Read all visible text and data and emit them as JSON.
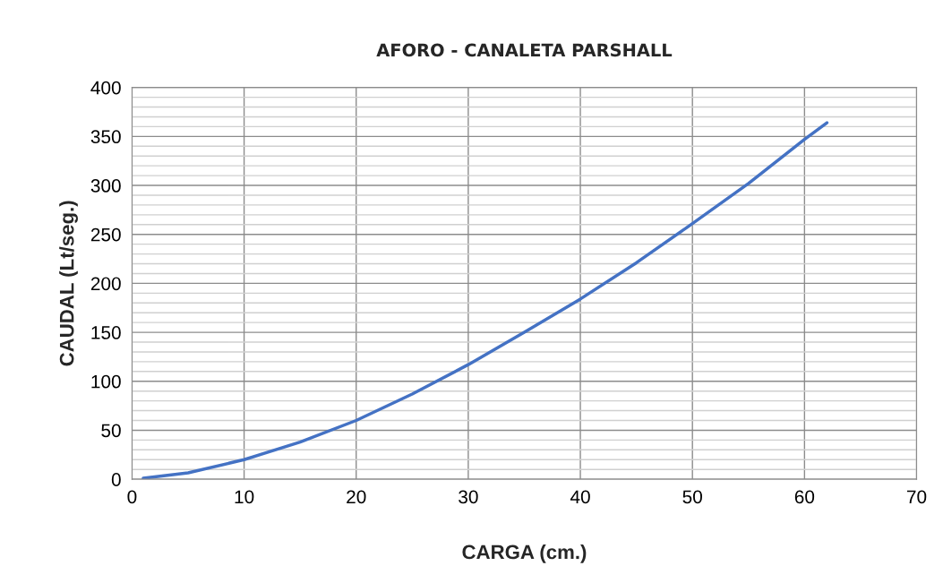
{
  "chart_data": {
    "type": "line",
    "title": "AFORO - CANALETA PARSHALL",
    "xlabel": "CARGA (cm.)",
    "ylabel": "CAUDAL (Lt/seg.)",
    "series": [
      {
        "color": "#4472c4",
        "x": [
          1,
          5,
          10,
          15,
          20,
          25,
          30,
          35,
          40,
          45,
          50,
          55,
          60,
          62
        ],
        "values": [
          1,
          6.5,
          20,
          38,
          60,
          87,
          117,
          150,
          184,
          221,
          261,
          302,
          347,
          364
        ]
      }
    ],
    "xlim": [
      0,
      70
    ],
    "xticks": [
      0,
      10,
      20,
      30,
      40,
      50,
      60,
      70
    ],
    "ylim": [
      0,
      400
    ],
    "yticks": [
      0,
      50,
      100,
      150,
      200,
      250,
      300,
      350,
      400
    ],
    "grid": true,
    "legend": false,
    "marker": "none",
    "line_style": "solid"
  }
}
